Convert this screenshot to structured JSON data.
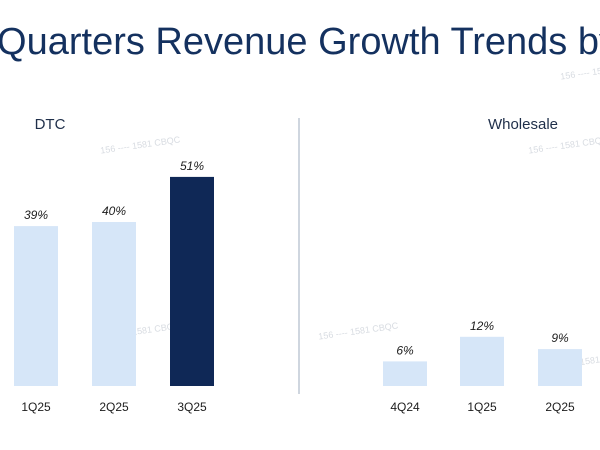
{
  "page": {
    "title": "ur Quarters Revenue Growth Trends by",
    "watermark_text": "156 ---- 1581 CBQC"
  },
  "colors": {
    "light_bar": "#d6e6f8",
    "dark_bar": "#0f2856",
    "title": "#14315f",
    "divider": "#cfd6df"
  },
  "chart_data": [
    {
      "type": "bar",
      "title": "DTC",
      "categories": [
        "1Q25",
        "2Q25",
        "3Q25"
      ],
      "values": [
        39,
        40,
        51
      ],
      "labels": [
        "39%",
        "40%",
        "51%"
      ],
      "highlight_index": 2,
      "unit": "%",
      "ylim": [
        0,
        60
      ],
      "grid": false,
      "partially_cropped_left": true
    },
    {
      "type": "bar",
      "title": "Wholesale",
      "categories": [
        "4Q24",
        "1Q25",
        "2Q25"
      ],
      "values": [
        6,
        12,
        9
      ],
      "labels": [
        "6%",
        "12%",
        "9%"
      ],
      "unit": "%",
      "ylim": [
        0,
        60
      ],
      "grid": false
    }
  ]
}
